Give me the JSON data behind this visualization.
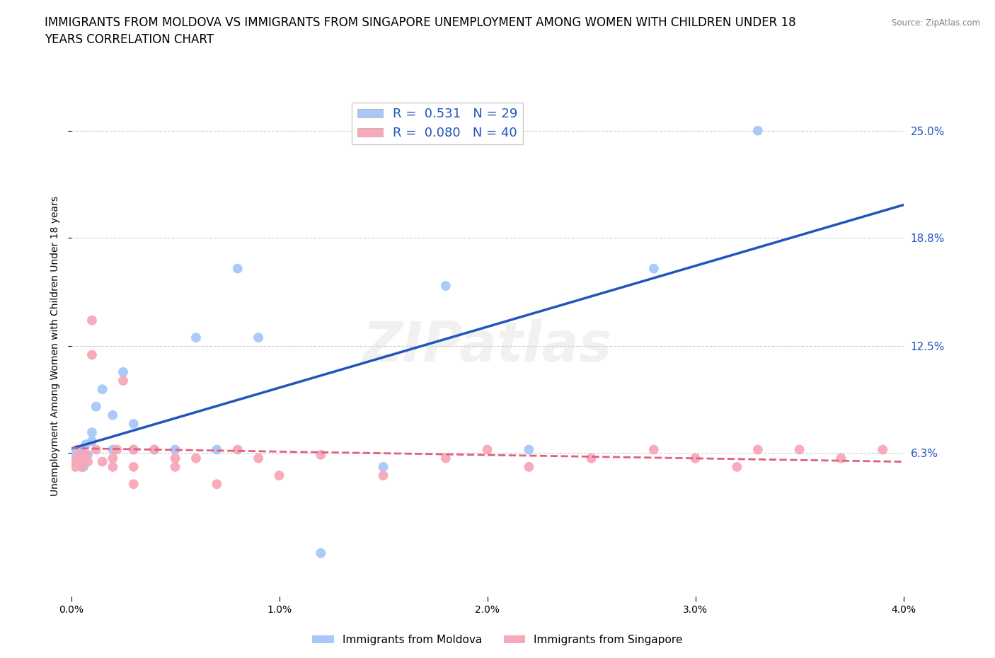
{
  "title": "IMMIGRANTS FROM MOLDOVA VS IMMIGRANTS FROM SINGAPORE UNEMPLOYMENT AMONG WOMEN WITH CHILDREN UNDER 18\nYEARS CORRELATION CHART",
  "source": "Source: ZipAtlas.com",
  "ylabel": "Unemployment Among Women with Children Under 18 years",
  "xlim": [
    0.0,
    0.04
  ],
  "ylim": [
    -0.02,
    0.27
  ],
  "yticks_right": [
    0.063,
    0.125,
    0.188,
    0.25
  ],
  "ytick_labels_right": [
    "6.3%",
    "12.5%",
    "18.8%",
    "25.0%"
  ],
  "xticks": [
    0.0,
    0.01,
    0.02,
    0.03,
    0.04
  ],
  "xtick_labels": [
    "0.0%",
    "1.0%",
    "2.0%",
    "3.0%",
    "4.0%"
  ],
  "moldova_color": "#a8c8f8",
  "singapore_color": "#f8a8b8",
  "trendline_moldova_color": "#2255bb",
  "trendline_singapore_color": "#e06080",
  "legend_R1": "R =  0.531",
  "legend_N1": "N = 29",
  "legend_R2": "R =  0.080",
  "legend_N2": "N = 40",
  "watermark": "ZIPatlas",
  "moldova_x": [
    0.0001,
    0.0002,
    0.0003,
    0.0004,
    0.0005,
    0.0006,
    0.0007,
    0.0008,
    0.001,
    0.001,
    0.0012,
    0.0015,
    0.002,
    0.002,
    0.0025,
    0.003,
    0.003,
    0.004,
    0.005,
    0.006,
    0.007,
    0.008,
    0.009,
    0.012,
    0.015,
    0.018,
    0.022,
    0.028,
    0.033
  ],
  "moldova_y": [
    0.062,
    0.058,
    0.065,
    0.06,
    0.065,
    0.055,
    0.068,
    0.062,
    0.07,
    0.075,
    0.09,
    0.1,
    0.065,
    0.085,
    0.11,
    0.065,
    0.08,
    0.065,
    0.065,
    0.13,
    0.065,
    0.17,
    0.13,
    0.005,
    0.055,
    0.16,
    0.065,
    0.17,
    0.25
  ],
  "singapore_x": [
    0.0001,
    0.0002,
    0.0003,
    0.0004,
    0.0005,
    0.0006,
    0.0007,
    0.0008,
    0.001,
    0.001,
    0.0012,
    0.0015,
    0.002,
    0.002,
    0.0022,
    0.0025,
    0.003,
    0.003,
    0.003,
    0.004,
    0.005,
    0.005,
    0.006,
    0.007,
    0.008,
    0.009,
    0.01,
    0.012,
    0.015,
    0.018,
    0.02,
    0.022,
    0.025,
    0.028,
    0.03,
    0.032,
    0.033,
    0.035,
    0.037,
    0.039
  ],
  "singapore_y": [
    0.058,
    0.055,
    0.06,
    0.062,
    0.055,
    0.06,
    0.062,
    0.058,
    0.14,
    0.12,
    0.065,
    0.058,
    0.055,
    0.06,
    0.065,
    0.105,
    0.065,
    0.045,
    0.055,
    0.065,
    0.06,
    0.055,
    0.06,
    0.045,
    0.065,
    0.06,
    0.05,
    0.062,
    0.05,
    0.06,
    0.065,
    0.055,
    0.06,
    0.065,
    0.06,
    0.055,
    0.065,
    0.065,
    0.06,
    0.065
  ],
  "grid_color": "#cccccc",
  "background_color": "#ffffff",
  "title_fontsize": 12,
  "axis_label_fontsize": 10,
  "tick_fontsize": 10
}
